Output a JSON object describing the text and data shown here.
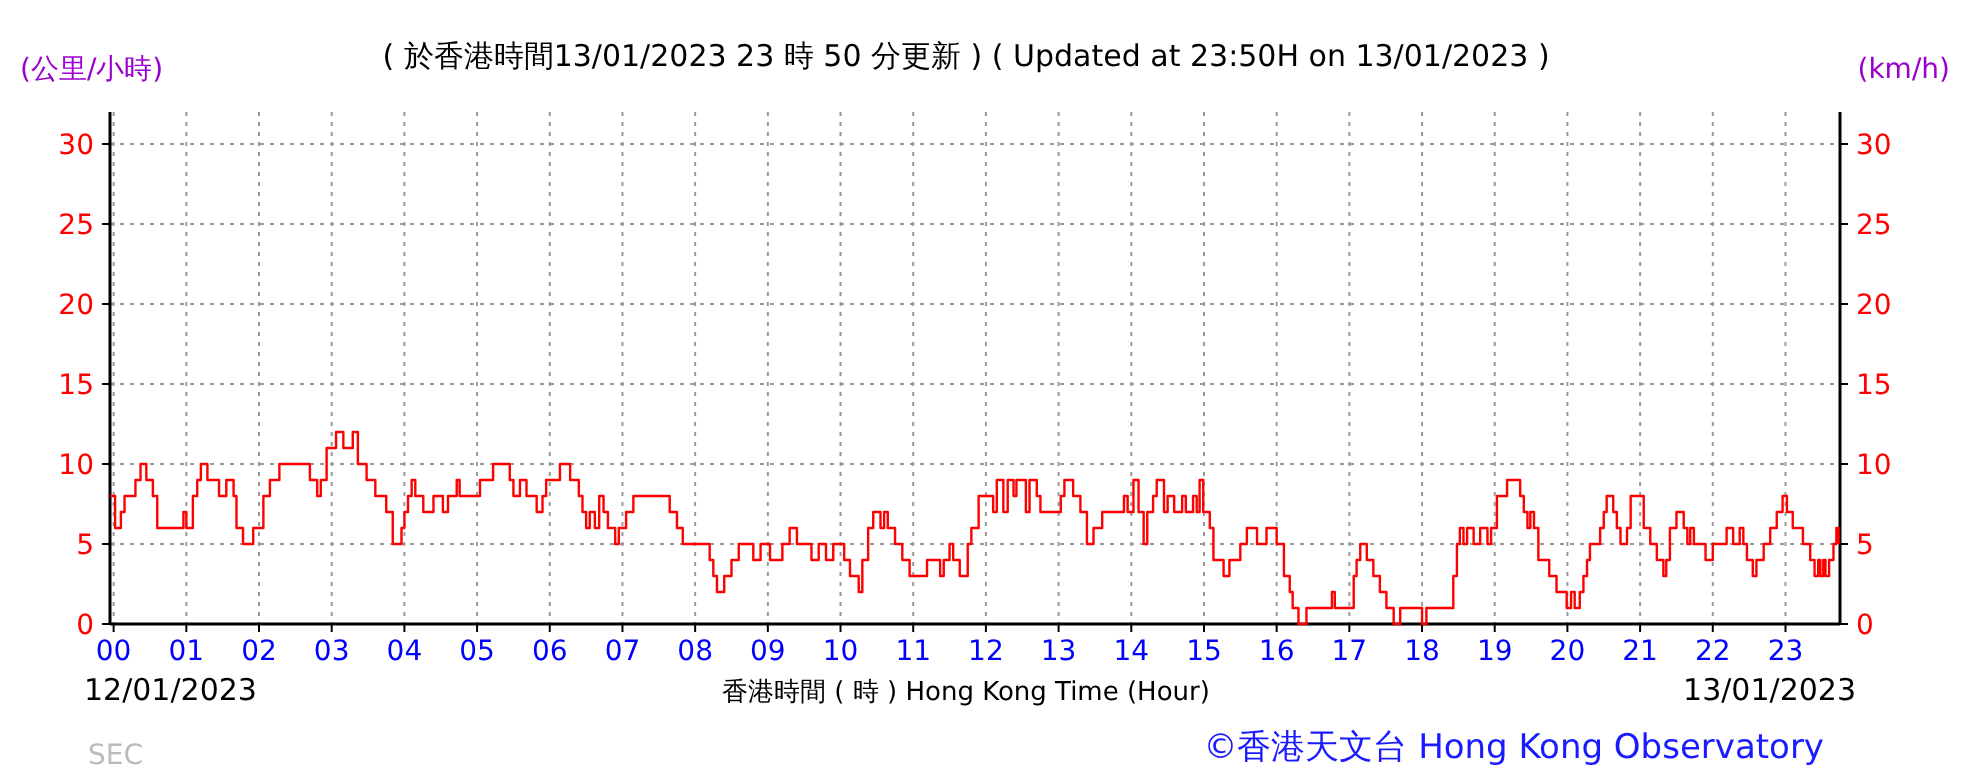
{
  "chart_data": {
    "type": "step",
    "title": "( 於香港時間13/01/2023 23 時 50 分更新 ) ( Updated at 23:50H on 13/01/2023 )",
    "xlabel": "香港時間 ( 時 )  Hong Kong Time (Hour)",
    "ylabel": "(公里/小時)",
    "y2label": "(km/h)",
    "annotations": [
      "12/01/2023",
      "13/01/2023",
      "SEC",
      "©香港天文台 Hong Kong Observatory"
    ],
    "xlim": [
      -0.05,
      23.75
    ],
    "xticks": [
      {
        "value": 0,
        "label": "00"
      },
      {
        "value": 1,
        "label": "01"
      },
      {
        "value": 2,
        "label": "02"
      },
      {
        "value": 3,
        "label": "03"
      },
      {
        "value": 4,
        "label": "04"
      },
      {
        "value": 5,
        "label": "05"
      },
      {
        "value": 6,
        "label": "06"
      },
      {
        "value": 7,
        "label": "07"
      },
      {
        "value": 8,
        "label": "08"
      },
      {
        "value": 9,
        "label": "09"
      },
      {
        "value": 10,
        "label": "10"
      },
      {
        "value": 11,
        "label": "11"
      },
      {
        "value": 12,
        "label": "12"
      },
      {
        "value": 13,
        "label": "13"
      },
      {
        "value": 14,
        "label": "14"
      },
      {
        "value": 15,
        "label": "15"
      },
      {
        "value": 16,
        "label": "16"
      },
      {
        "value": 17,
        "label": "17"
      },
      {
        "value": 18,
        "label": "18"
      },
      {
        "value": 19,
        "label": "19"
      },
      {
        "value": 20,
        "label": "20"
      },
      {
        "value": 21,
        "label": "21"
      },
      {
        "value": 22,
        "label": "22"
      },
      {
        "value": 23,
        "label": "23"
      }
    ],
    "ylim": [
      0,
      32
    ],
    "yticks": [
      0,
      5,
      10,
      15,
      20,
      25,
      30
    ],
    "y2lim": [
      0,
      32
    ],
    "y2ticks": [
      0,
      5,
      10,
      15,
      20,
      25,
      30
    ],
    "grid": true,
    "line_style": "solid",
    "marker": "none",
    "series": [
      {
        "color": "#ff0000",
        "x": [
          -0.05,
          0.02,
          0.1,
          0.15,
          0.3,
          0.37,
          0.45,
          0.54,
          0.6,
          0.96,
          1.0,
          1.09,
          1.15,
          1.2,
          1.29,
          1.45,
          1.55,
          1.65,
          1.69,
          1.78,
          1.92,
          2.06,
          2.15,
          2.28,
          2.7,
          2.8,
          2.85,
          2.93,
          3.06,
          3.16,
          3.29,
          3.36,
          3.48,
          3.6,
          3.75,
          3.84,
          3.96,
          4.0,
          4.05,
          4.1,
          4.15,
          4.26,
          4.4,
          4.53,
          4.6,
          4.72,
          4.76,
          5.04,
          5.22,
          5.45,
          5.5,
          5.59,
          5.68,
          5.82,
          5.9,
          5.95,
          6.14,
          6.28,
          6.4,
          6.45,
          6.5,
          6.55,
          6.62,
          6.68,
          6.74,
          6.8,
          6.9,
          6.95,
          7.05,
          7.15,
          7.65,
          7.75,
          7.83,
          8.2,
          8.25,
          8.3,
          8.4,
          8.5,
          8.6,
          8.8,
          8.9,
          9.03,
          9.2,
          9.3,
          9.4,
          9.6,
          9.7,
          9.8,
          9.9,
          10.05,
          10.13,
          10.25,
          10.3,
          10.38,
          10.45,
          10.55,
          10.6,
          10.65,
          10.75,
          10.85,
          10.95,
          11.19,
          11.37,
          11.42,
          11.5,
          11.55,
          11.64,
          11.75,
          11.8,
          11.9,
          12.1,
          12.15,
          12.24,
          12.3,
          12.38,
          12.42,
          12.55,
          12.6,
          12.7,
          12.75,
          13.03,
          13.08,
          13.2,
          13.3,
          13.39,
          13.48,
          13.6,
          13.9,
          13.95,
          14.03,
          14.1,
          14.17,
          14.22,
          14.3,
          14.35,
          14.45,
          14.5,
          14.59,
          14.7,
          14.75,
          14.85,
          14.9,
          14.94,
          14.99,
          15.08,
          15.13,
          15.27,
          15.35,
          15.5,
          15.59,
          15.73,
          15.86,
          16.0,
          16.1,
          16.18,
          16.22,
          16.3,
          16.41,
          16.76,
          16.8,
          17.06,
          17.1,
          17.15,
          17.24,
          17.33,
          17.42,
          17.51,
          17.61,
          17.7,
          18.0,
          18.06,
          18.43,
          18.48,
          18.52,
          18.57,
          18.62,
          18.71,
          18.8,
          18.9,
          18.95,
          19.03,
          19.17,
          19.35,
          19.4,
          19.45,
          19.49,
          19.54,
          19.6,
          19.75,
          19.85,
          19.99,
          20.05,
          20.1,
          20.17,
          20.22,
          20.27,
          20.31,
          20.45,
          20.5,
          20.54,
          20.63,
          20.68,
          20.73,
          20.82,
          20.87,
          21.05,
          21.14,
          21.23,
          21.32,
          21.36,
          21.41,
          21.5,
          21.6,
          21.65,
          21.69,
          21.74,
          21.9,
          22.0,
          22.19,
          22.28,
          22.37,
          22.42,
          22.47,
          22.55,
          22.6,
          22.7,
          22.79,
          22.88,
          22.96,
          23.02,
          23.1,
          23.24,
          23.34,
          23.4,
          23.45,
          23.48,
          23.52,
          23.55,
          23.6,
          23.66,
          23.7,
          23.73
        ],
        "values": [
          8,
          6,
          7,
          8,
          9,
          10,
          9,
          8,
          6,
          7,
          6,
          8,
          9,
          10,
          9,
          8,
          9,
          8,
          6,
          5,
          6,
          8,
          9,
          10,
          9,
          8,
          9,
          11,
          12,
          11,
          12,
          10,
          9,
          8,
          7,
          5,
          6,
          7,
          8,
          9,
          8,
          7,
          8,
          7,
          8,
          9,
          8,
          9,
          10,
          9,
          8,
          9,
          8,
          7,
          8,
          9,
          10,
          9,
          8,
          7,
          6,
          7,
          6,
          8,
          7,
          6,
          5,
          6,
          7,
          8,
          7,
          6,
          5,
          4,
          3,
          2,
          3,
          4,
          5,
          4,
          5,
          4,
          5,
          6,
          5,
          4,
          5,
          4,
          5,
          4,
          3,
          2,
          4,
          6,
          7,
          6,
          7,
          6,
          5,
          4,
          3,
          4,
          3,
          4,
          5,
          4,
          3,
          5,
          6,
          8,
          7,
          9,
          7,
          9,
          8,
          9,
          7,
          9,
          8,
          7,
          8,
          9,
          8,
          7,
          5,
          6,
          7,
          8,
          7,
          9,
          7,
          5,
          7,
          8,
          9,
          7,
          8,
          7,
          8,
          7,
          8,
          7,
          9,
          7,
          6,
          4,
          3,
          4,
          5,
          6,
          5,
          6,
          5,
          3,
          2,
          1,
          0,
          1,
          2,
          1,
          3,
          4,
          5,
          4,
          3,
          2,
          1,
          0,
          1,
          0,
          1,
          3,
          5,
          6,
          5,
          6,
          5,
          6,
          5,
          6,
          8,
          9,
          8,
          7,
          6,
          7,
          6,
          4,
          3,
          2,
          1,
          2,
          1,
          2,
          3,
          4,
          5,
          6,
          7,
          8,
          7,
          6,
          5,
          6,
          8,
          6,
          5,
          4,
          3,
          4,
          6,
          7,
          6,
          5,
          6,
          5,
          4,
          5,
          6,
          5,
          6,
          5,
          4,
          3,
          4,
          5,
          6,
          7,
          8,
          7,
          6,
          5,
          4,
          3,
          4,
          3,
          4,
          3,
          4,
          5,
          6,
          5
        ]
      }
    ]
  }
}
